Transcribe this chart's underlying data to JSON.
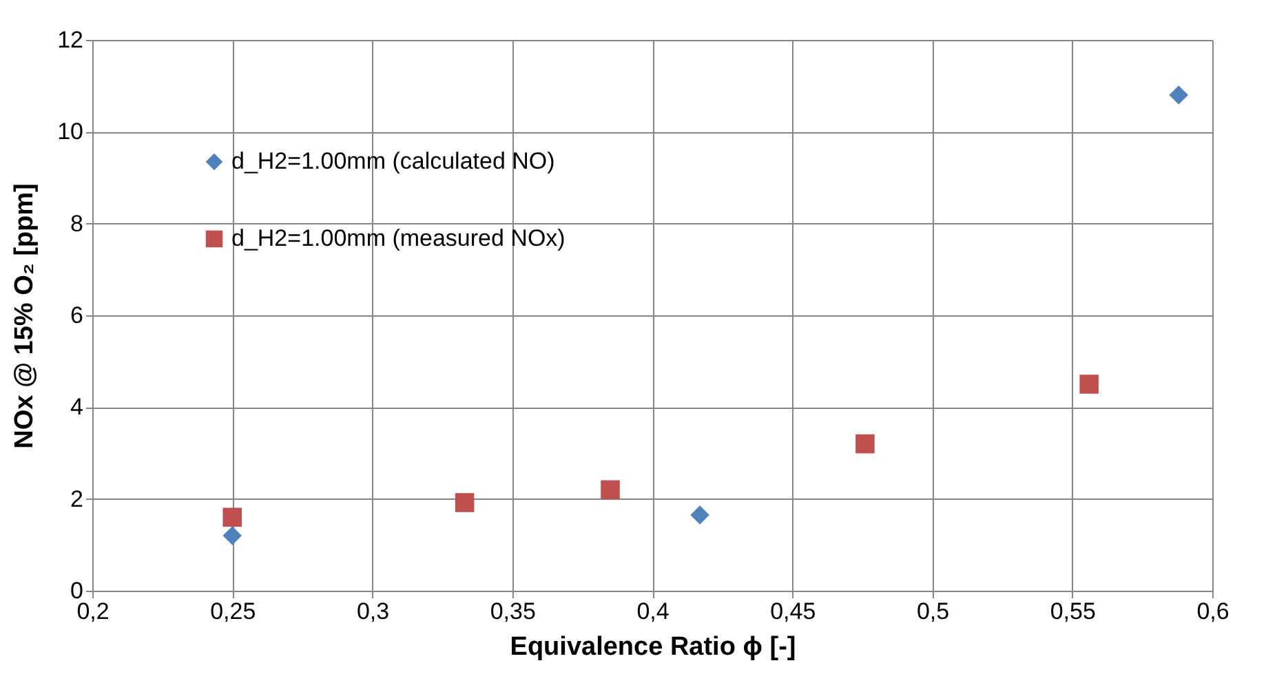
{
  "chart_data": {
    "type": "scatter",
    "xlabel": "Equivalence Ratio ϕ [-]",
    "ylabel": "NOx @ 15%  O₂ [ppm]",
    "xlim": [
      0.2,
      0.6
    ],
    "ylim": [
      0,
      12
    ],
    "xticks": [
      {
        "value": 0.2,
        "label": "0,2"
      },
      {
        "value": 0.25,
        "label": "0,25"
      },
      {
        "value": 0.3,
        "label": "0,3"
      },
      {
        "value": 0.35,
        "label": "0,35"
      },
      {
        "value": 0.4,
        "label": "0,4"
      },
      {
        "value": 0.45,
        "label": "0,45"
      },
      {
        "value": 0.5,
        "label": "0,5"
      },
      {
        "value": 0.55,
        "label": "0,55"
      },
      {
        "value": 0.6,
        "label": "0,6"
      }
    ],
    "yticks": [
      0,
      2,
      4,
      6,
      8,
      10,
      12
    ],
    "grid": true,
    "legend": "top left",
    "series": [
      {
        "name": "d_H2=1.00mm (calculated NO)",
        "color": "#4f81bd",
        "marker": "diamond",
        "x": [
          0.25,
          0.417,
          0.588
        ],
        "values": [
          1.2,
          1.65,
          10.8
        ]
      },
      {
        "name": "d_H2=1.00mm (measured NOx)",
        "color": "#c0504d",
        "marker": "square",
        "x": [
          0.25,
          0.333,
          0.385,
          0.476,
          0.556
        ],
        "values": [
          1.6,
          1.92,
          2.2,
          3.2,
          4.5
        ]
      }
    ]
  }
}
